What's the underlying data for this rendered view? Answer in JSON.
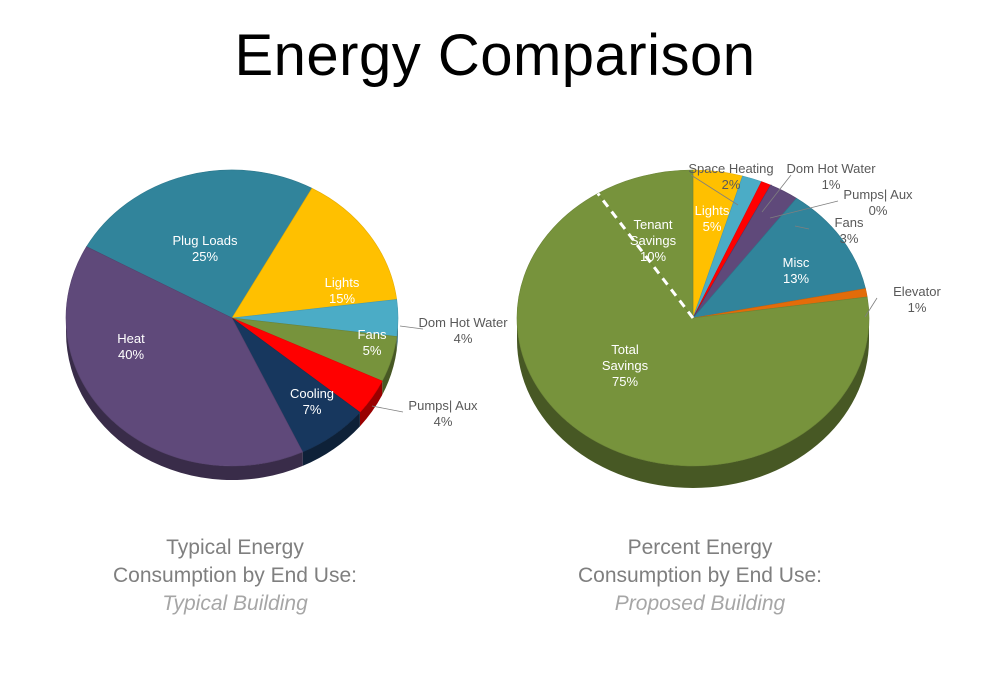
{
  "title": "Energy Comparison",
  "chart_data": [
    {
      "type": "pie",
      "caption_lines": [
        "Typical Energy",
        "Consumption by End Use:"
      ],
      "caption_sub": "Typical Building",
      "slices": [
        {
          "name": "Plug Loads",
          "value": 25,
          "label": "25%",
          "color": "#31849b"
        },
        {
          "name": "Lights",
          "value": 15,
          "label": "15%",
          "color": "#ffc000"
        },
        {
          "name": "Dom Hot Water",
          "value": 4,
          "label": "4%",
          "color": "#4bacc6"
        },
        {
          "name": "Fans",
          "value": 5,
          "label": "5%",
          "color": "#77933c"
        },
        {
          "name": "Pumps| Aux",
          "value": 4,
          "label": "4%",
          "color": "#ff0000"
        },
        {
          "name": "Cooling",
          "value": 7,
          "label": "7%",
          "color": "#17375e"
        },
        {
          "name": "Heat",
          "value": 40,
          "label": "40%",
          "color": "#5f497a"
        }
      ]
    },
    {
      "type": "pie",
      "caption_lines": [
        "Percent Energy",
        "Consumption by End Use:"
      ],
      "caption_sub": "Proposed Building",
      "slices": [
        {
          "name": "Lights",
          "value": 5,
          "label": "5%",
          "color": "#ffc000"
        },
        {
          "name": "Space Heating",
          "value": 2,
          "label": "2%",
          "color": "#4bacc6"
        },
        {
          "name": "Dom Hot Water",
          "value": 1,
          "label": "1%",
          "color": "#ff0000"
        },
        {
          "name": "Pumps| Aux",
          "value": 0,
          "label": "0%",
          "color": "#002060"
        },
        {
          "name": "Fans",
          "value": 3,
          "label": "3%",
          "color": "#5f497a"
        },
        {
          "name": "Misc",
          "value": 13,
          "label": "13%",
          "color": "#31849b"
        },
        {
          "name": "Elevator",
          "value": 1,
          "label": "1%",
          "color": "#e36c09"
        },
        {
          "name": "Total Savings",
          "value": 75,
          "label": "75%",
          "color": "#77933c"
        },
        {
          "name": "Tenant Savings",
          "value": 10,
          "label": "10%",
          "color": "#77933c"
        }
      ]
    }
  ]
}
